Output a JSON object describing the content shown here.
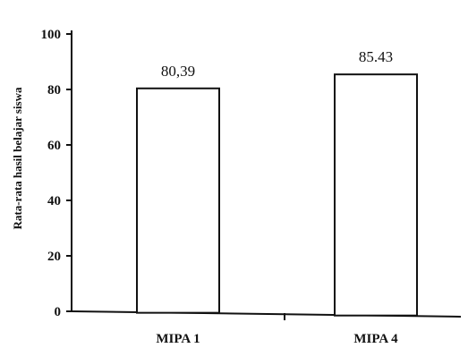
{
  "chart_data": {
    "type": "bar",
    "categories": [
      "MIPA 1",
      "MIPA 4"
    ],
    "values": [
      80.39,
      85.43
    ],
    "value_labels": [
      "80,39",
      "85.43"
    ],
    "title": "",
    "xlabel": "",
    "ylabel": "Rata-rata hasil belajar siswa",
    "ylim": [
      0,
      100
    ],
    "yticks": [
      0,
      20,
      40,
      60,
      80,
      100
    ],
    "ytick_labels": [
      "0",
      "20",
      "40",
      "60",
      "80",
      "100"
    ],
    "grid": false,
    "bar_fill": "#ffffff",
    "bar_stroke": "#111111"
  }
}
